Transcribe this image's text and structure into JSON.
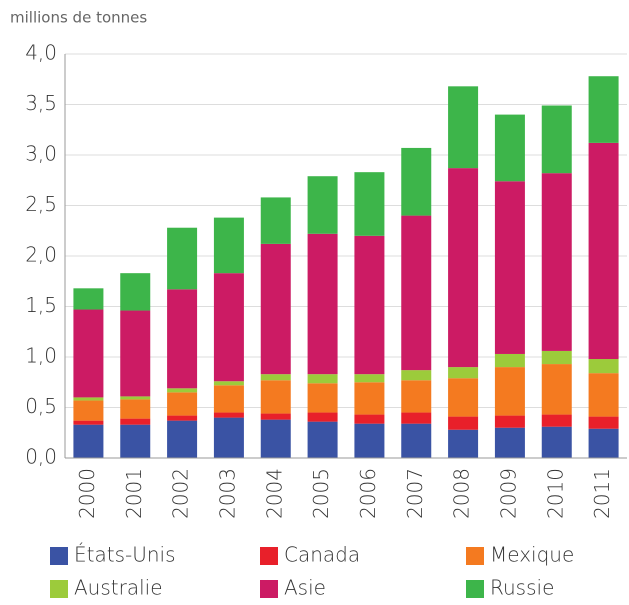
{
  "chart_data": {
    "type": "stacked_bar",
    "y_label": "millions de tonnes",
    "categories": [
      "2000",
      "2001",
      "2002",
      "2003",
      "2004",
      "2005",
      "2006",
      "2007",
      "2008",
      "2009",
      "2010",
      "2011"
    ],
    "series": [
      {
        "name": "États-Unis",
        "color": "#3a53a4",
        "values": [
          0.33,
          0.33,
          0.37,
          0.4,
          0.38,
          0.36,
          0.34,
          0.34,
          0.28,
          0.3,
          0.31,
          0.29
        ]
      },
      {
        "name": "Canada",
        "color": "#e8202a",
        "values": [
          0.04,
          0.06,
          0.05,
          0.05,
          0.06,
          0.09,
          0.09,
          0.11,
          0.13,
          0.12,
          0.12,
          0.12
        ]
      },
      {
        "name": "Mexique",
        "color": "#f47a20",
        "values": [
          0.2,
          0.19,
          0.23,
          0.27,
          0.33,
          0.29,
          0.32,
          0.32,
          0.38,
          0.48,
          0.5,
          0.43
        ]
      },
      {
        "name": "Australie",
        "color": "#9ccb3b",
        "values": [
          0.03,
          0.03,
          0.04,
          0.04,
          0.06,
          0.09,
          0.08,
          0.1,
          0.11,
          0.13,
          0.13,
          0.14
        ]
      },
      {
        "name": "Asie",
        "color": "#cc1b64",
        "values": [
          0.87,
          0.85,
          0.98,
          1.07,
          1.29,
          1.39,
          1.37,
          1.53,
          1.97,
          1.71,
          1.76,
          2.14
        ]
      },
      {
        "name": "Russie",
        "color": "#3db54a",
        "values": [
          0.21,
          0.37,
          0.61,
          0.55,
          0.46,
          0.57,
          0.63,
          0.67,
          0.81,
          0.66,
          0.67,
          0.66
        ]
      }
    ],
    "ylim": [
      0,
      4
    ],
    "yticks": [
      {
        "value": 0,
        "label": "0,0"
      },
      {
        "value": 0.5,
        "label": "0,5"
      },
      {
        "value": 1,
        "label": "1,0"
      },
      {
        "value": 1.5,
        "label": "1,5"
      },
      {
        "value": 2,
        "label": "2,0"
      },
      {
        "value": 2.5,
        "label": "2,5"
      },
      {
        "value": 3,
        "label": "3,0"
      },
      {
        "value": 3.5,
        "label": "3,5"
      },
      {
        "value": 4,
        "label": "4,0"
      }
    ],
    "grid": true
  }
}
